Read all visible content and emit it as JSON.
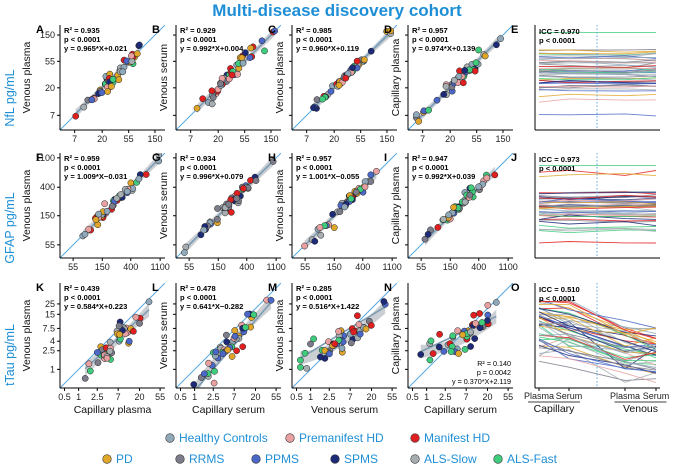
{
  "figure_title": "Multi-disease discovery cohort",
  "row_labels": [
    "NfL pg/mL",
    "GFAP pg/mL",
    "tTau pg/mL"
  ],
  "colors": {
    "title": "#1e8fd6",
    "identity_line": "#5aa9e0",
    "regression_line": "#7e9db5",
    "confidence_band": "#b9bfc4"
  },
  "groups": [
    {
      "name": "Healthy Controls",
      "color": "#8fa9ba"
    },
    {
      "name": "Premanifest HD",
      "color": "#e8a0a0"
    },
    {
      "name": "Manifest HD",
      "color": "#e02020"
    },
    {
      "name": "PD",
      "color": "#e0a62a"
    },
    {
      "name": "RRMS",
      "color": "#7c7c8a"
    },
    {
      "name": "PPMS",
      "color": "#4b68c8"
    },
    {
      "name": "SPMS",
      "color": "#1c2a78"
    },
    {
      "name": "ALS-Slow",
      "color": "#a6aeb2"
    },
    {
      "name": "ALS-Fast",
      "color": "#3fcc7c"
    }
  ],
  "chart_data": [
    {
      "label": "A",
      "type": "scatter",
      "xlabel": "",
      "ylabel": "Venous plasma",
      "log": true,
      "xlim": [
        4,
        220
      ],
      "ylim": [
        4,
        220
      ],
      "xticks": [
        7,
        20,
        55,
        150
      ],
      "yticks": [
        7,
        20,
        55,
        150
      ],
      "stats": [
        "R² = 0.935",
        "p < 0.0001",
        "y = 0.965*X+0.021"
      ],
      "stats_pos": "top-left",
      "fit": {
        "slope": 0.965,
        "intercept": 0.021
      },
      "scatter": 0.09
    },
    {
      "label": "B",
      "type": "scatter",
      "xlabel": "",
      "ylabel": "Venous serum",
      "log": true,
      "xlim": [
        4,
        220
      ],
      "ylim": [
        4,
        220
      ],
      "xticks": [
        7,
        20,
        55,
        150
      ],
      "yticks": [
        7,
        20,
        55,
        150
      ],
      "stats": [
        "R² = 0.929",
        "p < 0.0001",
        "y = 0.992*X+0.004"
      ],
      "stats_pos": "top-left",
      "fit": {
        "slope": 0.992,
        "intercept": 0.004
      },
      "scatter": 0.1
    },
    {
      "label": "C",
      "type": "scatter",
      "xlabel": "",
      "ylabel": "Venous plasma",
      "log": true,
      "xlim": [
        4,
        220
      ],
      "ylim": [
        4,
        220
      ],
      "xticks": [
        7,
        20,
        55,
        150
      ],
      "yticks": [
        7,
        20,
        55,
        150
      ],
      "stats": [
        "R² = 0.985",
        "p < 0.0001",
        "y = 0.960*X+0.119"
      ],
      "stats_pos": "top-left",
      "fit": {
        "slope": 0.96,
        "intercept": 0.119
      },
      "scatter": 0.05
    },
    {
      "label": "D",
      "type": "scatter",
      "xlabel": "",
      "ylabel": "Capillary plasma",
      "log": true,
      "xlim": [
        4,
        220
      ],
      "ylim": [
        4,
        220
      ],
      "xticks": [
        7,
        20,
        55,
        150
      ],
      "yticks": [
        7,
        20,
        55,
        150
      ],
      "stats": [
        "R² = 0.957",
        "p < 0.0001",
        "y = 0.974*X+0.139"
      ],
      "stats_pos": "top-left",
      "fit": {
        "slope": 0.974,
        "intercept": 0.139
      },
      "scatter": 0.08
    },
    {
      "label": "E",
      "type": "line",
      "ylim": [
        4,
        220
      ],
      "log": true,
      "stats": [
        "ICC = 0.970",
        "p < 0.0001"
      ],
      "xcats": [],
      "groups_bottom": []
    },
    {
      "label": "F",
      "type": "scatter",
      "xlabel": "",
      "ylabel": "Venous plasma",
      "log": true,
      "xlim": [
        35,
        1300
      ],
      "ylim": [
        35,
        1300
      ],
      "xticks": [
        55,
        150,
        400,
        1100
      ],
      "yticks": [
        55,
        150,
        400,
        1100
      ],
      "stats": [
        "R² = 0.959",
        "p < 0.0001",
        "y = 1.009*X−0.031"
      ],
      "stats_pos": "top-left",
      "fit": {
        "slope": 1.009,
        "intercept": -0.031
      },
      "scatter": 0.07
    },
    {
      "label": "G",
      "type": "scatter",
      "xlabel": "",
      "ylabel": "Venous serum",
      "log": true,
      "xlim": [
        35,
        1300
      ],
      "ylim": [
        35,
        1300
      ],
      "xticks": [
        55,
        150,
        400,
        1100
      ],
      "yticks": [
        55,
        150,
        400,
        1100
      ],
      "stats": [
        "R² = 0.934",
        "p < 0.0001",
        "y = 0.996*X+0.079"
      ],
      "stats_pos": "top-left",
      "fit": {
        "slope": 0.996,
        "intercept": 0.079
      },
      "scatter": 0.08
    },
    {
      "label": "H",
      "type": "scatter",
      "xlabel": "",
      "ylabel": "Venous plasma",
      "log": true,
      "xlim": [
        35,
        1300
      ],
      "ylim": [
        35,
        1300
      ],
      "xticks": [
        55,
        150,
        400,
        1100
      ],
      "yticks": [
        55,
        150,
        400,
        1100
      ],
      "stats": [
        "R² = 0.957",
        "p < 0.0001",
        "y = 1.001*X−0.055"
      ],
      "stats_pos": "top-left",
      "fit": {
        "slope": 1.001,
        "intercept": -0.055
      },
      "scatter": 0.07
    },
    {
      "label": "I",
      "type": "scatter",
      "xlabel": "",
      "ylabel": "Capillary plasma",
      "log": true,
      "xlim": [
        35,
        1300
      ],
      "ylim": [
        35,
        1300
      ],
      "xticks": [
        55,
        150,
        400,
        1100
      ],
      "yticks": [
        55,
        150,
        400,
        1100
      ],
      "stats": [
        "R² = 0.947",
        "p < 0.0001",
        "y = 0.992*X+0.039"
      ],
      "stats_pos": "top-left",
      "fit": {
        "slope": 0.992,
        "intercept": 0.039
      },
      "scatter": 0.08
    },
    {
      "label": "J",
      "type": "line",
      "ylim": [
        35,
        1300
      ],
      "log": true,
      "stats": [
        "ICC = 0.973",
        "p < 0.0001"
      ],
      "xcats": [],
      "groups_bottom": []
    },
    {
      "label": "K",
      "type": "scatter",
      "xlabel": "Capillary plasma",
      "ylabel": "Venous plasma",
      "log": true,
      "xlim": [
        0.4,
        70
      ],
      "ylim": [
        0.4,
        70
      ],
      "xticks": [
        0.5,
        1,
        2.5,
        7,
        20,
        55
      ],
      "yticks": [
        1,
        2.5,
        4,
        7.5,
        15,
        25
      ],
      "stats": [
        "R² = 0.439",
        "p < 0.0001",
        "y = 0.584*X+0.223"
      ],
      "stats_pos": "top-left",
      "fit": {
        "slope": 0.584,
        "intercept": 0.223
      },
      "scatter": 0.16
    },
    {
      "label": "L",
      "type": "scatter",
      "xlabel": "Capillary serum",
      "ylabel": "Venous serum",
      "log": true,
      "xlim": [
        0.4,
        70
      ],
      "ylim": [
        0.4,
        70
      ],
      "xticks": [
        0.5,
        1,
        2.5,
        7,
        20,
        55
      ],
      "yticks": [
        1,
        2.5,
        4,
        7.5,
        15,
        25
      ],
      "stats": [
        "R² = 0.478",
        "p < 0.0001",
        "y = 0.641*X−0.282"
      ],
      "stats_pos": "top-left",
      "fit": {
        "slope": 0.641,
        "intercept": -0.282
      },
      "scatter": 0.15
    },
    {
      "label": "M",
      "type": "scatter",
      "xlabel": "Venous serum",
      "ylabel": "Venous plasma",
      "log": true,
      "xlim": [
        0.4,
        70
      ],
      "ylim": [
        0.4,
        70
      ],
      "xticks": [
        0.5,
        1,
        2.5,
        7,
        20,
        55
      ],
      "yticks": [
        1,
        2.5,
        4,
        7.5,
        15,
        25
      ],
      "stats": [
        "R² = 0.285",
        "p < 0.0001",
        "y = 0.516*X+1.422"
      ],
      "stats_pos": "top-left",
      "fit": {
        "slope": 0.516,
        "intercept": 1.422
      },
      "scatter": 0.17
    },
    {
      "label": "N",
      "type": "scatter",
      "xlabel": "Capillary serum",
      "ylabel": "Capillary plasma",
      "log": true,
      "xlim": [
        0.4,
        70
      ],
      "ylim": [
        0.4,
        70
      ],
      "xticks": [
        0.5,
        1,
        2.5,
        7,
        20,
        55
      ],
      "yticks": [
        1,
        2.5,
        4,
        7.5,
        15,
        25
      ],
      "stats": [
        "R² = 0.140",
        "p = 0.0042",
        "y = 0.370*X+2.119"
      ],
      "stats_pos": "bottom-right",
      "fit": {
        "slope": 0.37,
        "intercept": 2.119
      },
      "scatter": 0.2
    },
    {
      "label": "O",
      "type": "line",
      "ylim": [
        0.4,
        70
      ],
      "log": true,
      "stats": [
        "ICC = 0.510",
        "p < 0.0001"
      ],
      "xcats": [
        "Plasma",
        "Serum",
        "Plasma",
        "Serum"
      ],
      "groups_bottom": [
        "Capillary",
        "Venous"
      ]
    }
  ]
}
